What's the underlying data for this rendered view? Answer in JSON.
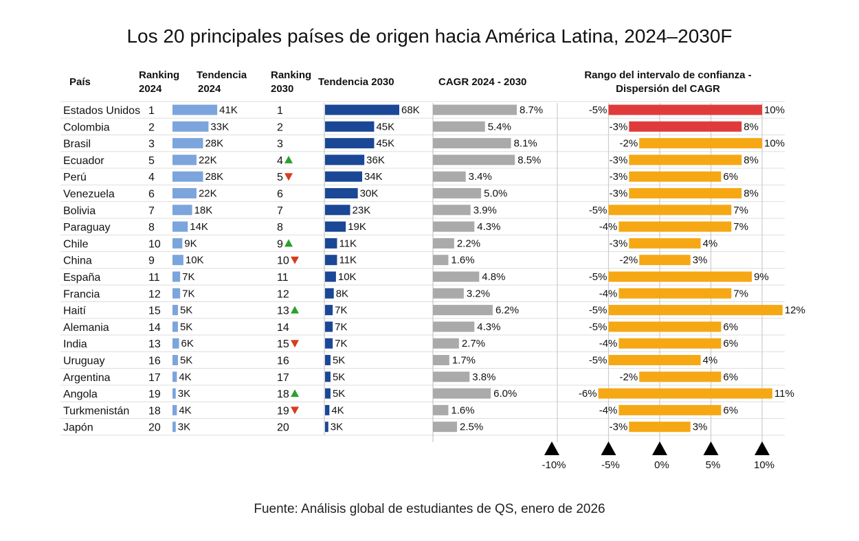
{
  "title": "Los 20 principales países de origen hacia América Latina, 2024–2030F",
  "source": "Fuente: Análisis global de estudiantes de QS, enero de 2026",
  "headers": {
    "pais": "País",
    "rank2024_l1": "Ranking",
    "rank2024_l2": "2024",
    "trend2024_l1": "Tendencia",
    "trend2024_l2": "2024",
    "rank2030_l1": "Ranking",
    "rank2030_l2": "2030",
    "trend2030": "Tendencia 2030",
    "cagr": "CAGR 2024 - 2030",
    "ci_l1": "Rango del intervalo de confianza -",
    "ci_l2": "Dispersión del CAGR"
  },
  "colors": {
    "trend2024": "#7ba5dc",
    "trend2030": "#1a4796",
    "cagr": "#aaaaaa",
    "ci_high": "#e03b3b",
    "ci_normal": "#f5a814",
    "arrow_up": "#2ca02c",
    "arrow_down": "#d83b1e",
    "grid": "#dddddd",
    "axis_marker": "#000000"
  },
  "chart_data": {
    "type": "table",
    "columns": [
      "País",
      "Ranking 2024",
      "Tendencia 2024",
      "Ranking 2030",
      "Tendencia 2030",
      "CAGR 2024 - 2030",
      "Rango del intervalo de confianza - Dispersión del CAGR"
    ],
    "rows": [
      {
        "country": "Estados Unidos",
        "rank2024": 1,
        "trend2024": 41,
        "trend2024_label": "41K",
        "rank2030": 1,
        "change": "",
        "trend2030": 68,
        "trend2030_label": "68K",
        "cagr": 8.7,
        "cagr_label": "8.7%",
        "ci_low": -5,
        "ci_low_label": "-5%",
        "ci_high": 10,
        "ci_high_label": "10%",
        "ci_color": "red"
      },
      {
        "country": "Colombia",
        "rank2024": 2,
        "trend2024": 33,
        "trend2024_label": "33K",
        "rank2030": 2,
        "change": "",
        "trend2030": 45,
        "trend2030_label": "45K",
        "cagr": 5.4,
        "cagr_label": "5.4%",
        "ci_low": -3,
        "ci_low_label": "-3%",
        "ci_high": 8,
        "ci_high_label": "8%",
        "ci_color": "red"
      },
      {
        "country": "Brasil",
        "rank2024": 3,
        "trend2024": 28,
        "trend2024_label": "28K",
        "rank2030": 3,
        "change": "",
        "trend2030": 45,
        "trend2030_label": "45K",
        "cagr": 8.1,
        "cagr_label": "8.1%",
        "ci_low": -2,
        "ci_low_label": "-2%",
        "ci_high": 10,
        "ci_high_label": "10%",
        "ci_color": "orange"
      },
      {
        "country": "Ecuador",
        "rank2024": 5,
        "trend2024": 22,
        "trend2024_label": "22K",
        "rank2030": 4,
        "change": "up",
        "trend2030": 36,
        "trend2030_label": "36K",
        "cagr": 8.5,
        "cagr_label": "8.5%",
        "ci_low": -3,
        "ci_low_label": "-3%",
        "ci_high": 8,
        "ci_high_label": "8%",
        "ci_color": "orange"
      },
      {
        "country": "Perú",
        "rank2024": 4,
        "trend2024": 28,
        "trend2024_label": "28K",
        "rank2030": 5,
        "change": "down",
        "trend2030": 34,
        "trend2030_label": "34K",
        "cagr": 3.4,
        "cagr_label": "3.4%",
        "ci_low": -3,
        "ci_low_label": "-3%",
        "ci_high": 6,
        "ci_high_label": "6%",
        "ci_color": "orange"
      },
      {
        "country": "Venezuela",
        "rank2024": 6,
        "trend2024": 22,
        "trend2024_label": "22K",
        "rank2030": 6,
        "change": "",
        "trend2030": 30,
        "trend2030_label": "30K",
        "cagr": 5.0,
        "cagr_label": "5.0%",
        "ci_low": -3,
        "ci_low_label": "-3%",
        "ci_high": 8,
        "ci_high_label": "8%",
        "ci_color": "orange"
      },
      {
        "country": "Bolivia",
        "rank2024": 7,
        "trend2024": 18,
        "trend2024_label": "18K",
        "rank2030": 7,
        "change": "",
        "trend2030": 23,
        "trend2030_label": "23K",
        "cagr": 3.9,
        "cagr_label": "3.9%",
        "ci_low": -5,
        "ci_low_label": "-5%",
        "ci_high": 7,
        "ci_high_label": "7%",
        "ci_color": "orange"
      },
      {
        "country": "Paraguay",
        "rank2024": 8,
        "trend2024": 14,
        "trend2024_label": "14K",
        "rank2030": 8,
        "change": "",
        "trend2030": 19,
        "trend2030_label": "19K",
        "cagr": 4.3,
        "cagr_label": "4.3%",
        "ci_low": -4,
        "ci_low_label": "-4%",
        "ci_high": 7,
        "ci_high_label": "7%",
        "ci_color": "orange"
      },
      {
        "country": "Chile",
        "rank2024": 10,
        "trend2024": 9,
        "trend2024_label": "9K",
        "rank2030": 9,
        "change": "up",
        "trend2030": 11,
        "trend2030_label": "11K",
        "cagr": 2.2,
        "cagr_label": "2.2%",
        "ci_low": -3,
        "ci_low_label": "-3%",
        "ci_high": 4,
        "ci_high_label": "4%",
        "ci_color": "orange"
      },
      {
        "country": "China",
        "rank2024": 9,
        "trend2024": 10,
        "trend2024_label": "10K",
        "rank2030": 10,
        "change": "down",
        "trend2030": 11,
        "trend2030_label": "11K",
        "cagr": 1.6,
        "cagr_label": "1.6%",
        "ci_low": -2,
        "ci_low_label": "-2%",
        "ci_high": 3,
        "ci_high_label": "3%",
        "ci_color": "orange"
      },
      {
        "country": "España",
        "rank2024": 11,
        "trend2024": 7,
        "trend2024_label": "7K",
        "rank2030": 11,
        "change": "",
        "trend2030": 10,
        "trend2030_label": "10K",
        "cagr": 4.8,
        "cagr_label": "4.8%",
        "ci_low": -5,
        "ci_low_label": "-5%",
        "ci_high": 9,
        "ci_high_label": "9%",
        "ci_color": "orange"
      },
      {
        "country": "Francia",
        "rank2024": 12,
        "trend2024": 7,
        "trend2024_label": "7K",
        "rank2030": 12,
        "change": "",
        "trend2030": 8,
        "trend2030_label": "8K",
        "cagr": 3.2,
        "cagr_label": "3.2%",
        "ci_low": -4,
        "ci_low_label": "-4%",
        "ci_high": 7,
        "ci_high_label": "7%",
        "ci_color": "orange"
      },
      {
        "country": "Haití",
        "rank2024": 15,
        "trend2024": 5,
        "trend2024_label": "5K",
        "rank2030": 13,
        "change": "up",
        "trend2030": 7,
        "trend2030_label": "7K",
        "cagr": 6.2,
        "cagr_label": "6.2%",
        "ci_low": -5,
        "ci_low_label": "-5%",
        "ci_high": 12,
        "ci_high_label": "12%",
        "ci_color": "orange"
      },
      {
        "country": "Alemania",
        "rank2024": 14,
        "trend2024": 5,
        "trend2024_label": "5K",
        "rank2030": 14,
        "change": "",
        "trend2030": 7,
        "trend2030_label": "7K",
        "cagr": 4.3,
        "cagr_label": "4.3%",
        "ci_low": -5,
        "ci_low_label": "-5%",
        "ci_high": 6,
        "ci_high_label": "6%",
        "ci_color": "orange"
      },
      {
        "country": "India",
        "rank2024": 13,
        "trend2024": 6,
        "trend2024_label": "6K",
        "rank2030": 15,
        "change": "down",
        "trend2030": 7,
        "trend2030_label": "7K",
        "cagr": 2.7,
        "cagr_label": "2.7%",
        "ci_low": -4,
        "ci_low_label": "-4%",
        "ci_high": 6,
        "ci_high_label": "6%",
        "ci_color": "orange"
      },
      {
        "country": "Uruguay",
        "rank2024": 16,
        "trend2024": 5,
        "trend2024_label": "5K",
        "rank2030": 16,
        "change": "",
        "trend2030": 5,
        "trend2030_label": "5K",
        "cagr": 1.7,
        "cagr_label": "1.7%",
        "ci_low": -5,
        "ci_low_label": "-5%",
        "ci_high": 4,
        "ci_high_label": "4%",
        "ci_color": "orange"
      },
      {
        "country": "Argentina",
        "rank2024": 17,
        "trend2024": 4,
        "trend2024_label": "4K",
        "rank2030": 17,
        "change": "",
        "trend2030": 5,
        "trend2030_label": "5K",
        "cagr": 3.8,
        "cagr_label": "3.8%",
        "ci_low": -2,
        "ci_low_label": "-2%",
        "ci_high": 6,
        "ci_high_label": "6%",
        "ci_color": "orange"
      },
      {
        "country": "Angola",
        "rank2024": 19,
        "trend2024": 3,
        "trend2024_label": "3K",
        "rank2030": 18,
        "change": "up",
        "trend2030": 5,
        "trend2030_label": "5K",
        "cagr": 6.0,
        "cagr_label": "6.0%",
        "ci_low": -6,
        "ci_low_label": "-6%",
        "ci_high": 11,
        "ci_high_label": "11%",
        "ci_color": "orange"
      },
      {
        "country": "Turkmenistán",
        "rank2024": 18,
        "trend2024": 4,
        "trend2024_label": "4K",
        "rank2030": 19,
        "change": "down",
        "trend2030": 4,
        "trend2030_label": "4K",
        "cagr": 1.6,
        "cagr_label": "1.6%",
        "ci_low": -4,
        "ci_low_label": "-4%",
        "ci_high": 6,
        "ci_high_label": "6%",
        "ci_color": "orange"
      },
      {
        "country": "Japón",
        "rank2024": 20,
        "trend2024": 3,
        "trend2024_label": "3K",
        "rank2030": 20,
        "change": "",
        "trend2030": 3,
        "trend2030_label": "3K",
        "cagr": 2.5,
        "cagr_label": "2.5%",
        "ci_low": -3,
        "ci_low_label": "-3%",
        "ci_high": 3,
        "ci_high_label": "3%",
        "ci_color": "orange"
      }
    ],
    "ci_axis": {
      "range": [
        -12,
        12
      ],
      "ticks": [
        -10,
        -5,
        0,
        5,
        10
      ],
      "tick_labels": [
        "-10%",
        "-5%",
        "0%",
        "5%",
        "10%"
      ]
    },
    "scales": {
      "trend_max_k": 68,
      "cagr_max_pct": 10
    }
  }
}
